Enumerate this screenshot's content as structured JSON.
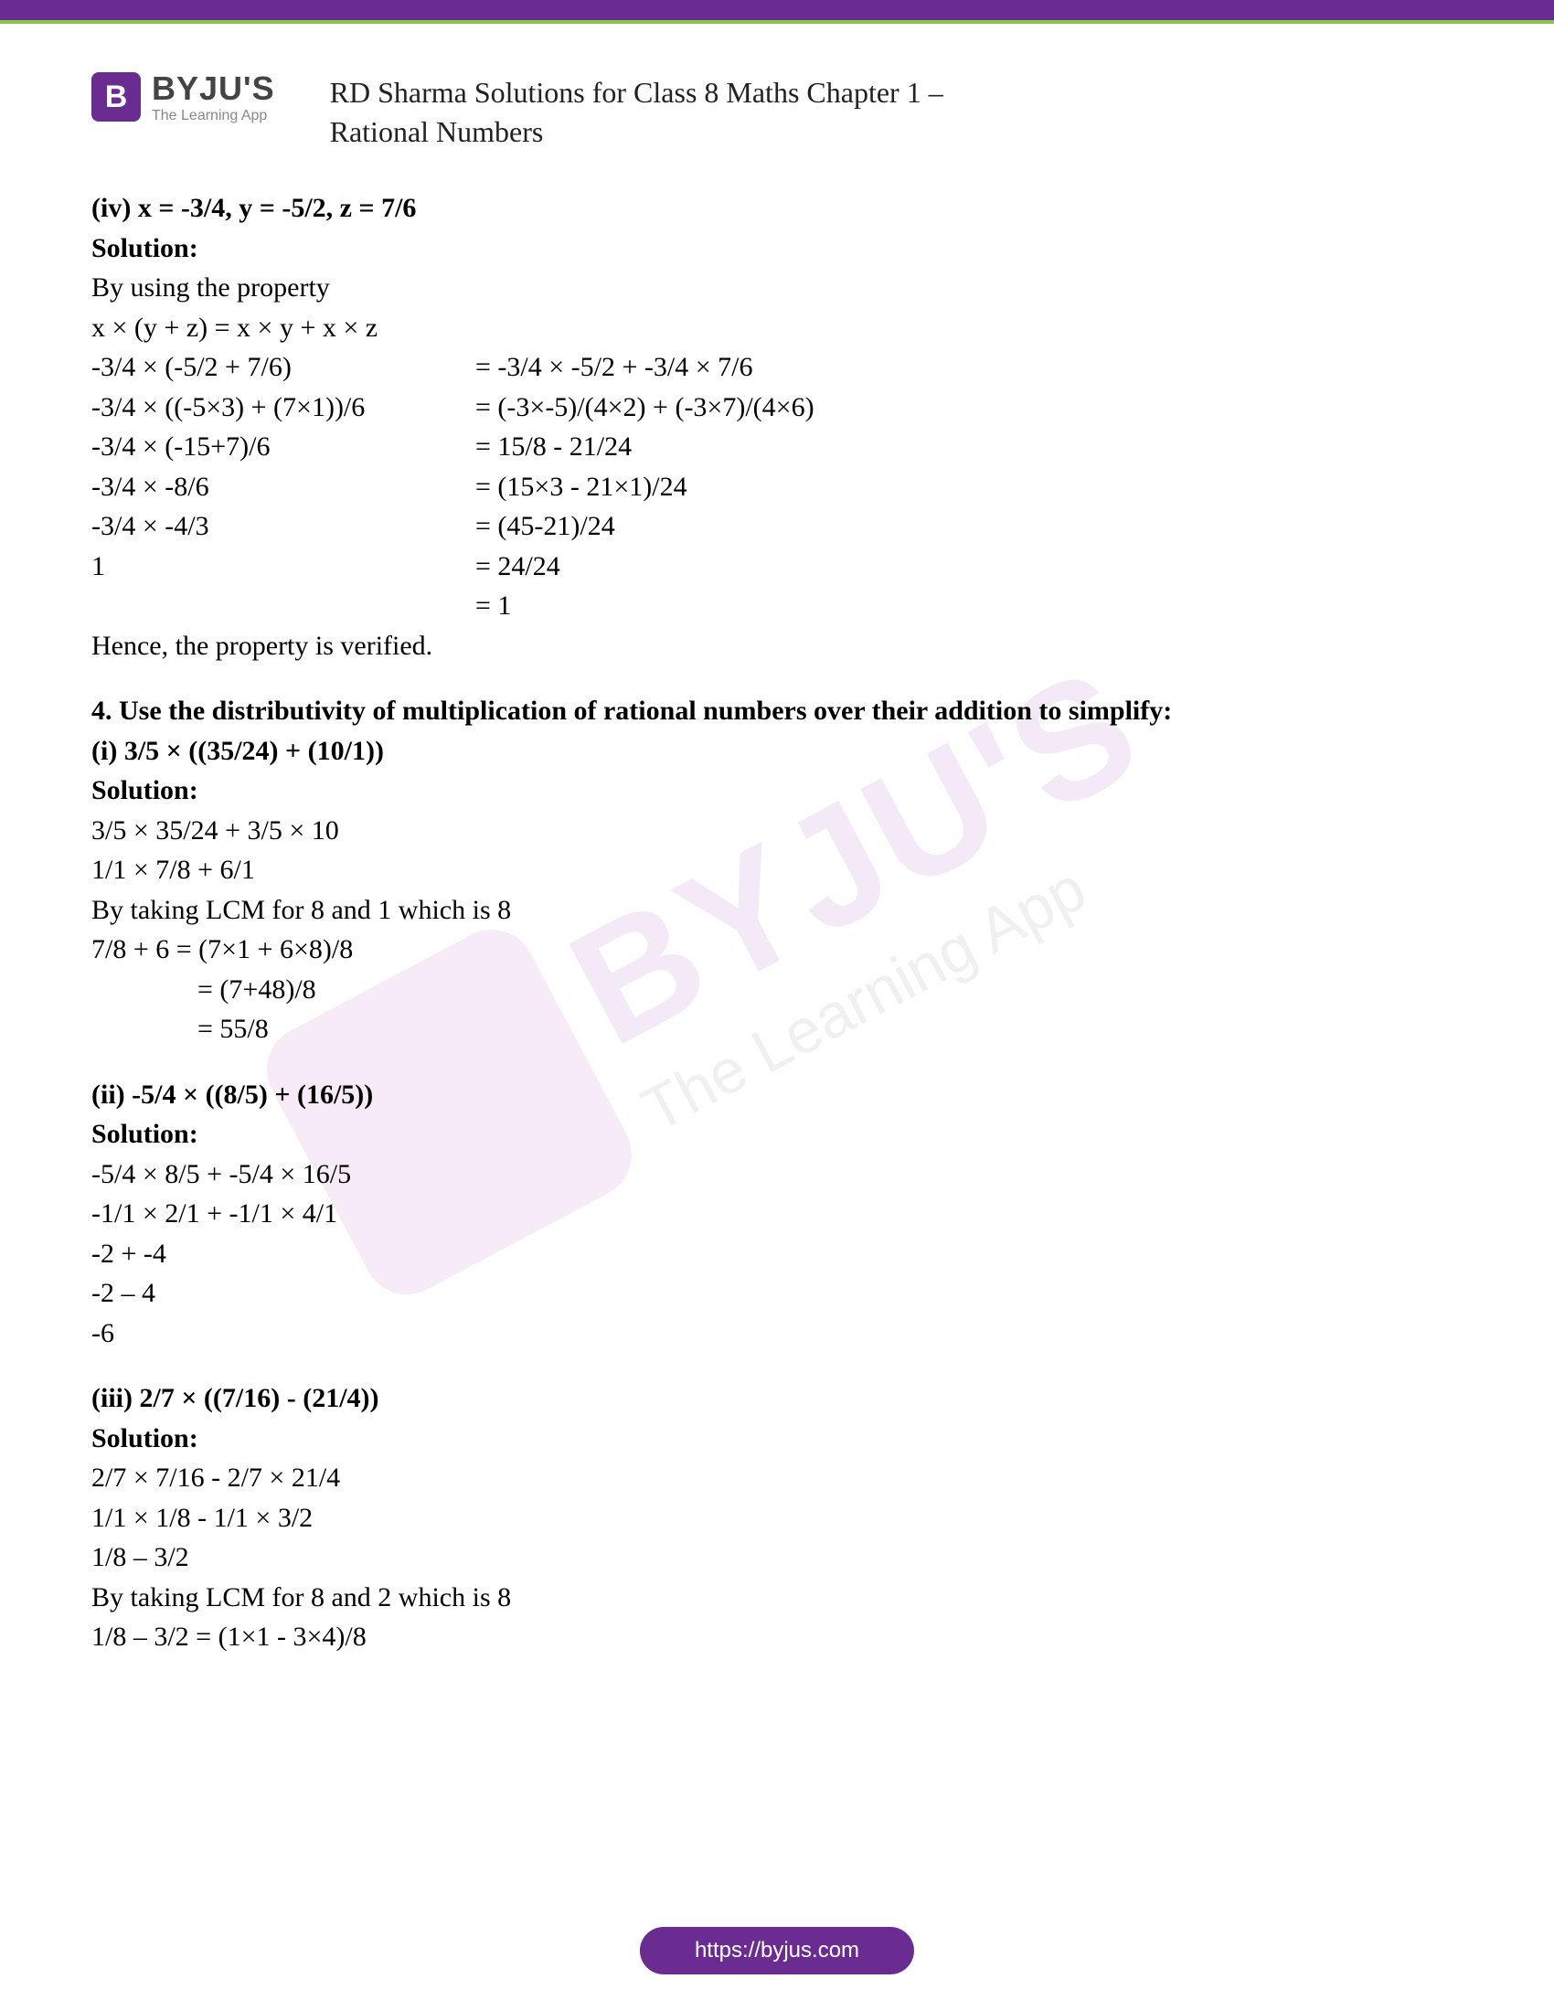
{
  "header": {
    "logo_letter": "B",
    "logo_name": "BYJU'S",
    "logo_tagline": "The Learning App",
    "title_line1": "RD Sharma Solutions for Class 8 Maths Chapter 1 –",
    "title_line2": "Rational Numbers"
  },
  "problem_iv": {
    "heading": "(iv) x = -3/4, y = -5/2, z = 7/6",
    "solution_label": "Solution:",
    "intro": "By using the property",
    "formula": "x × (y + z) = x × y + x × z",
    "rows": [
      {
        "left": "-3/4 × (-5/2 + 7/6)",
        "right": "= -3/4 × -5/2 + -3/4 × 7/6"
      },
      {
        "left": "-3/4 × ((-5×3) + (7×1))/6",
        "right": "= (-3×-5)/(4×2) + (-3×7)/(4×6)"
      },
      {
        "left": "-3/4 × (-15+7)/6",
        "right": "= 15/8 - 21/24"
      },
      {
        "left": "-3/4 × -8/6",
        "right": "= (15×3 - 21×1)/24"
      },
      {
        "left": "-3/4 × -4/3",
        "right": "= (45-21)/24"
      },
      {
        "left": " 1",
        "right": "= 24/24"
      },
      {
        "left": "",
        "right": "= 1"
      }
    ],
    "conclusion": "Hence, the property is verified."
  },
  "question4": {
    "heading": "4. Use the distributivity of multiplication of rational numbers over their addition to simplify:",
    "parts": [
      {
        "title": "(i) 3/5 × ((35/24) + (10/1))",
        "solution_label": "Solution:",
        "lines": [
          "3/5 × 35/24 + 3/5 × 10",
          "1/1 × 7/8 + 6/1",
          "By taking LCM for 8 and 1 which is 8",
          "7/8 + 6 = (7×1 + 6×8)/8"
        ],
        "indented_lines": [
          "= (7+48)/8",
          "= 55/8"
        ]
      },
      {
        "title": "(ii) -5/4 × ((8/5) + (16/5))",
        "solution_label": "Solution:",
        "lines": [
          "-5/4 × 8/5 + -5/4 × 16/5",
          "-1/1 × 2/1 + -1/1 × 4/1",
          "-2 + -4",
          "-2 – 4",
          "-6"
        ],
        "indented_lines": []
      },
      {
        "title": "(iii) 2/7 × ((7/16) - (21/4))",
        "solution_label": "Solution:",
        "lines": [
          "2/7 × 7/16 - 2/7 × 21/4",
          "1/1 × 1/8 - 1/1 × 3/2",
          "1/8 – 3/2",
          "By taking LCM for 8 and 2 which is 8",
          "1/8 – 3/2 = (1×1 - 3×4)/8"
        ],
        "indented_lines": []
      }
    ]
  },
  "footer": {
    "url": "https://byjus.com"
  },
  "colors": {
    "brand_purple": "#6b2c91",
    "accent_green": "#8bc34a",
    "watermark_purple": "#a84fb8",
    "text": "#000000"
  }
}
